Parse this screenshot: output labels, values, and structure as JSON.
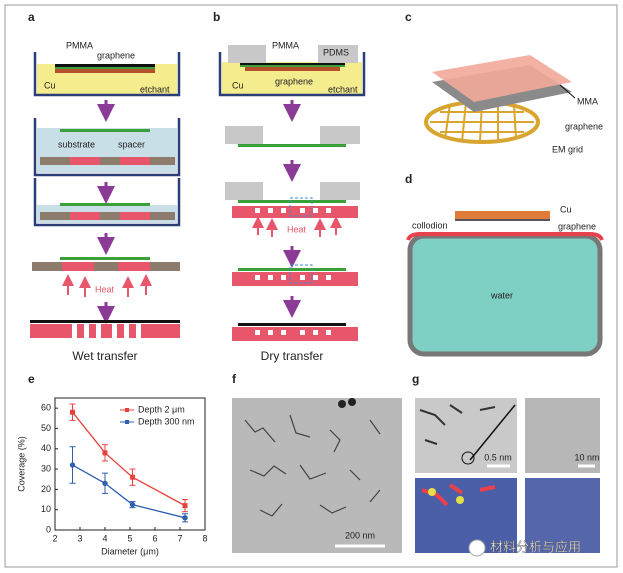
{
  "panel_labels": [
    "a",
    "b",
    "c",
    "d",
    "e",
    "f",
    "g"
  ],
  "wet_transfer": {
    "pmma": "PMMA",
    "graphene": "graphene",
    "cu": "Cu",
    "etchant": "etchant",
    "substrate": "substrate",
    "spacer": "spacer",
    "heat": "Heat",
    "caption": "Wet transfer"
  },
  "dry_transfer": {
    "pmma": "PMMA",
    "pdms": "PDMS",
    "cu": "Cu",
    "graphene": "graphene",
    "etchant": "etchant",
    "heat": "Heat",
    "caption": "Dry transfer"
  },
  "grid_schematic": {
    "mma": "MMA",
    "graphene": "graphene",
    "em_grid": "EM grid"
  },
  "water_schematic": {
    "cu": "Cu",
    "graphene": "graphene",
    "collodion": "collodion",
    "water": "water"
  },
  "chart_data": {
    "type": "line",
    "x_label": "Diameter (μm)",
    "y_label": "Coverage (%)",
    "x": [
      2.7,
      4,
      5.1,
      7.2
    ],
    "series": [
      {
        "name": "Depth 2 μm",
        "color": "#e8413c",
        "values": [
          58,
          38,
          26,
          12
        ],
        "errors": [
          4,
          4,
          4,
          3
        ]
      },
      {
        "name": "Depth 300 nm",
        "color": "#2e5fb0",
        "values": [
          32,
          23,
          12.5,
          6
        ],
        "errors": [
          9,
          5,
          1.5,
          2
        ]
      }
    ],
    "xlim": [
      2,
      8
    ],
    "xticks": [
      2,
      3,
      4,
      5,
      6,
      7,
      8
    ],
    "ylim": [
      0,
      65
    ],
    "yticks": [
      0,
      10,
      20,
      30,
      40,
      50,
      60
    ],
    "legend": "upper-right"
  },
  "micrograph_f": {
    "scale_bar": "200 nm"
  },
  "micrograph_g": {
    "scale_bar_1": "0.5 nm",
    "scale_bar_2": "10 nm"
  },
  "watermark": "材料分析与应用"
}
